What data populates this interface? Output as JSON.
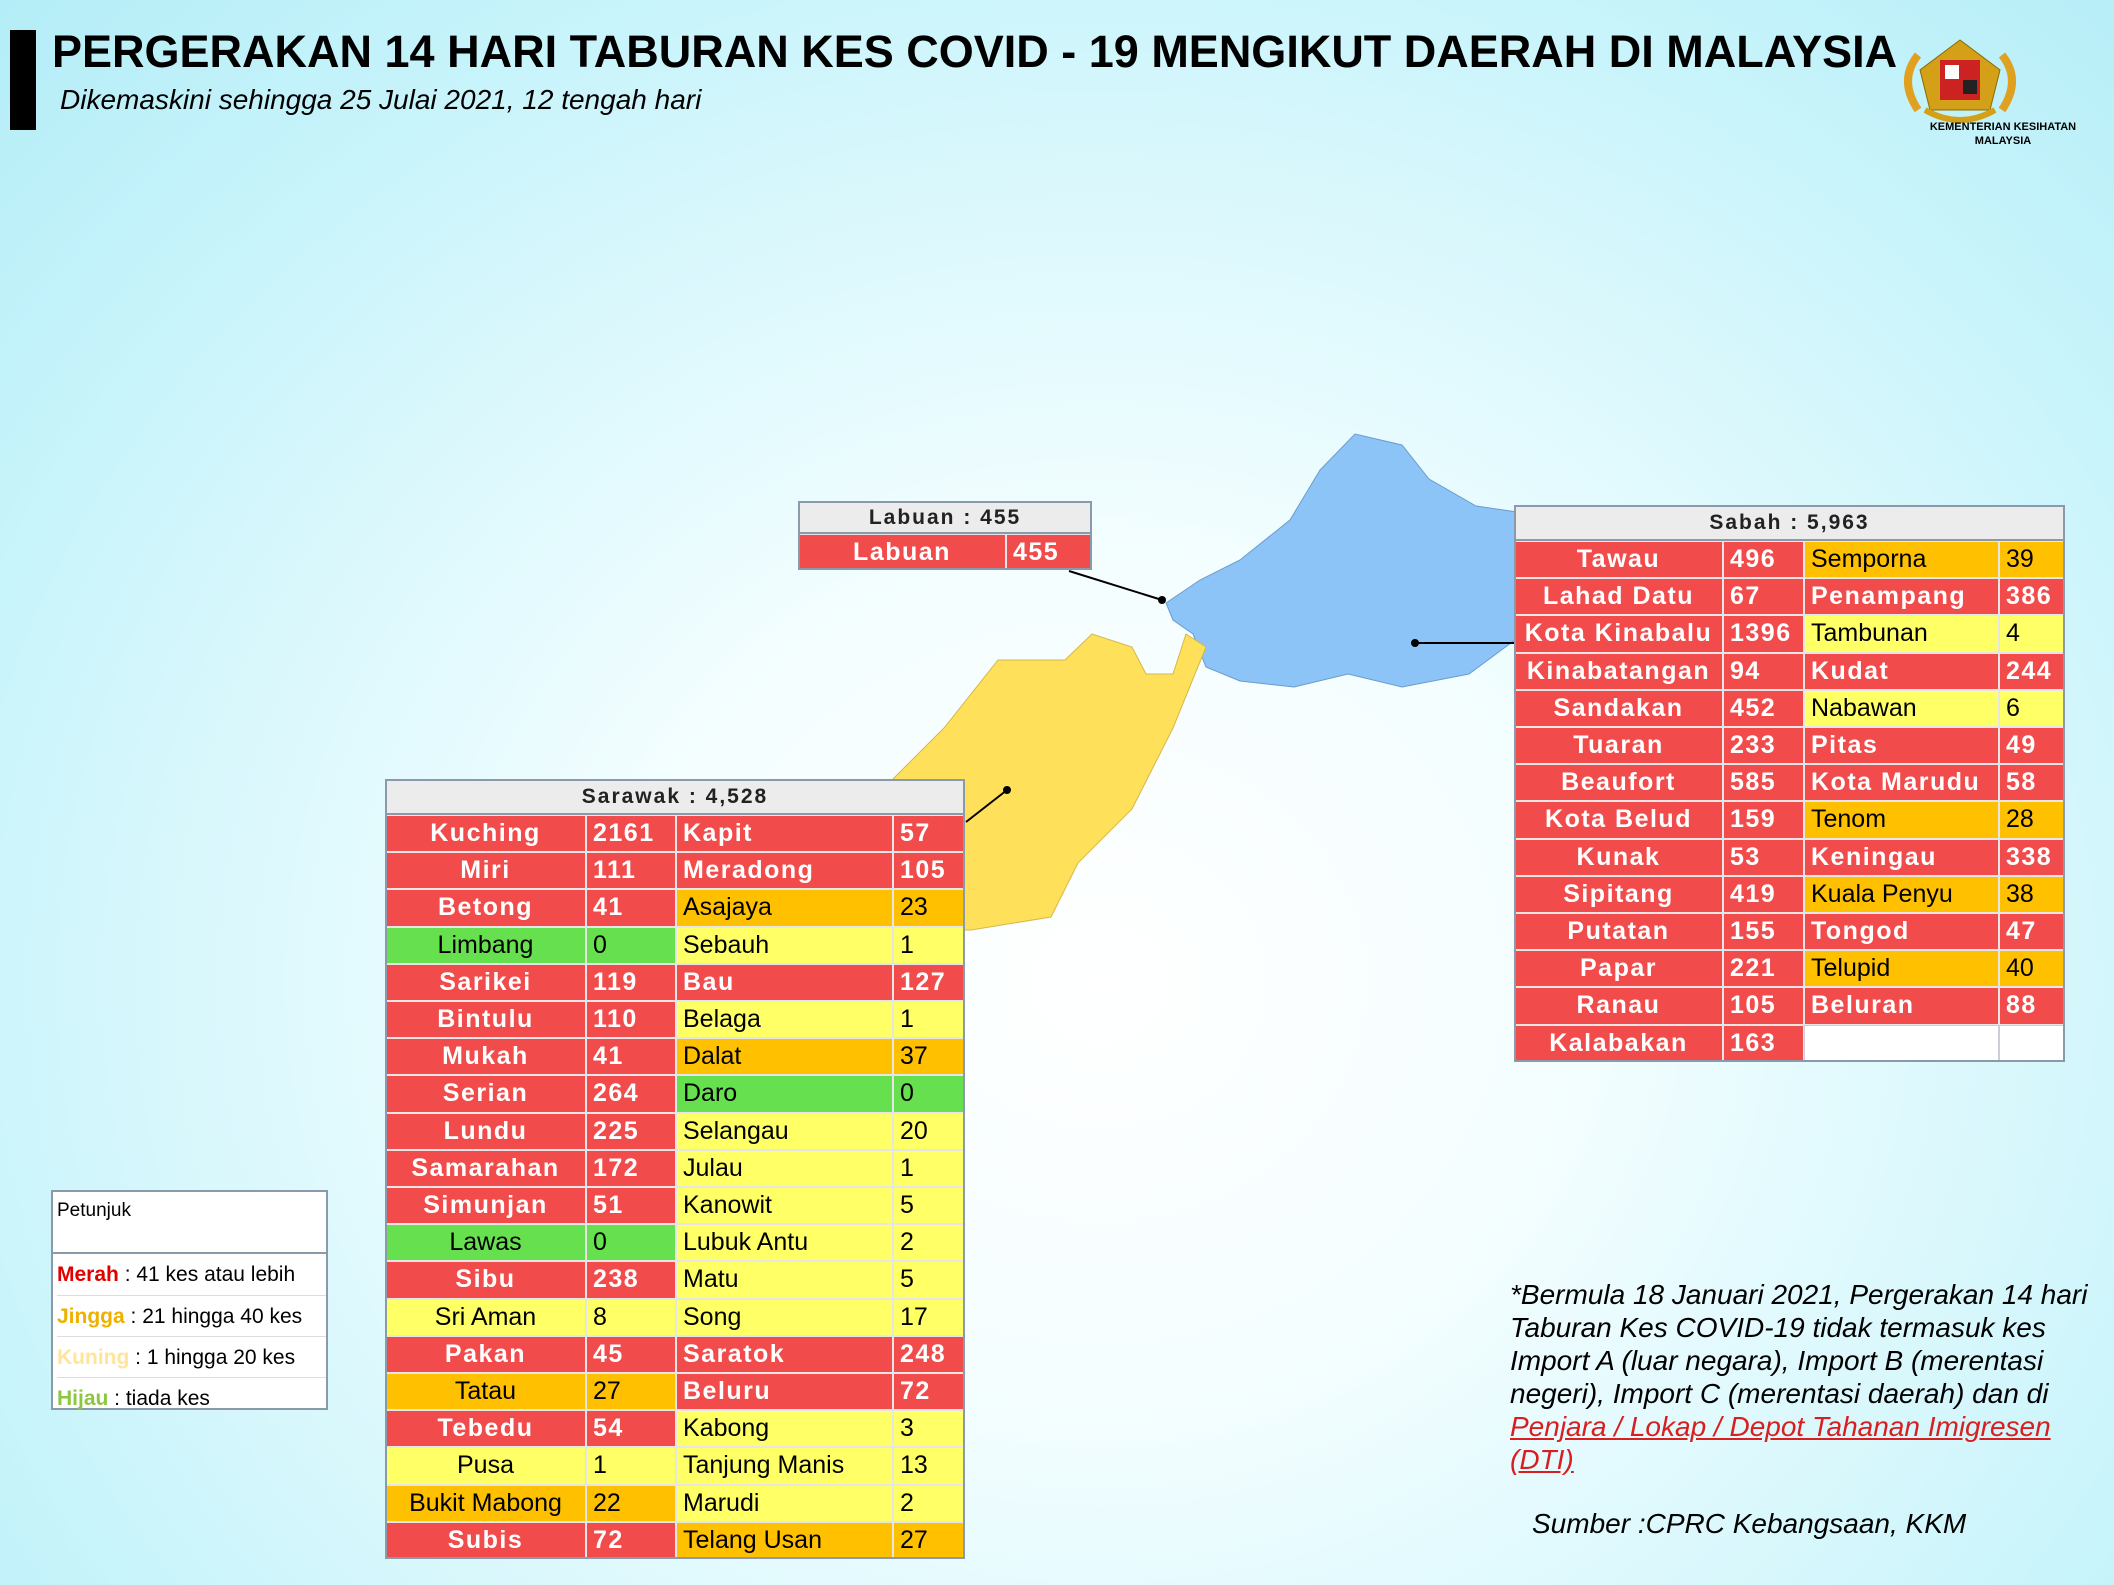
{
  "header": {
    "title": "PERGERAKAN 14 HARI TABURAN KES COVID - 19 MENGIKUT DAERAH DI MALAYSIA",
    "subtitle": "Dikemaskini sehingga 25 Julai 2021, 12 tengah hari"
  },
  "logo": {
    "line1": "KEMENTERIAN KESIHATAN",
    "line2": "MALAYSIA"
  },
  "tables": {
    "labuan": {
      "title": "Labuan : 455",
      "left": [
        {
          "name": "Labuan",
          "value": 455,
          "color": "#f24b4b"
        }
      ]
    },
    "sabah": {
      "title": "Sabah : 5,963",
      "left": [
        {
          "name": "Tawau",
          "value": 496,
          "color": "#f24b4b"
        },
        {
          "name": "Lahad Datu",
          "value": 67,
          "color": "#f24b4b"
        },
        {
          "name": "Kota Kinabalu",
          "value": 1396,
          "color": "#f24b4b"
        },
        {
          "name": "Kinabatangan",
          "value": 94,
          "color": "#f24b4b"
        },
        {
          "name": "Sandakan",
          "value": 452,
          "color": "#f24b4b"
        },
        {
          "name": "Tuaran",
          "value": 233,
          "color": "#f24b4b"
        },
        {
          "name": "Beaufort",
          "value": 585,
          "color": "#f24b4b"
        },
        {
          "name": "Kota Belud",
          "value": 159,
          "color": "#f24b4b"
        },
        {
          "name": "Kunak",
          "value": 53,
          "color": "#f24b4b"
        },
        {
          "name": "Sipitang",
          "value": 419,
          "color": "#f24b4b"
        },
        {
          "name": "Putatan",
          "value": 155,
          "color": "#f24b4b"
        },
        {
          "name": "Papar",
          "value": 221,
          "color": "#f24b4b"
        },
        {
          "name": "Ranau",
          "value": 105,
          "color": "#f24b4b"
        },
        {
          "name": "Kalabakan",
          "value": 163,
          "color": "#f24b4b"
        }
      ],
      "right": [
        {
          "name": "Semporna",
          "value": 39,
          "color": "#ffc000"
        },
        {
          "name": "Penampang",
          "value": 386,
          "color": "#f24b4b"
        },
        {
          "name": "Tambunan",
          "value": 4,
          "color": "#ffff66"
        },
        {
          "name": "Kudat",
          "value": 244,
          "color": "#f24b4b"
        },
        {
          "name": "Nabawan",
          "value": 6,
          "color": "#ffff66"
        },
        {
          "name": "Pitas",
          "value": 49,
          "color": "#f24b4b"
        },
        {
          "name": "Kota Marudu",
          "value": 58,
          "color": "#f24b4b"
        },
        {
          "name": "Tenom",
          "value": 28,
          "color": "#ffc000"
        },
        {
          "name": "Keningau",
          "value": 338,
          "color": "#f24b4b"
        },
        {
          "name": "Kuala Penyu",
          "value": 38,
          "color": "#ffc000"
        },
        {
          "name": "Tongod",
          "value": 47,
          "color": "#f24b4b"
        },
        {
          "name": "Telupid",
          "value": 40,
          "color": "#ffc000"
        },
        {
          "name": "Beluran",
          "value": 88,
          "color": "#f24b4b"
        }
      ]
    },
    "sarawak": {
      "title": "Sarawak : 4,528",
      "left": [
        {
          "name": "Kuching",
          "value": 2161,
          "color": "#f24b4b"
        },
        {
          "name": "Miri",
          "value": 111,
          "color": "#f24b4b"
        },
        {
          "name": "Betong",
          "value": 41,
          "color": "#f24b4b"
        },
        {
          "name": "Limbang",
          "value": 0,
          "color": "#66e04f"
        },
        {
          "name": "Sarikei",
          "value": 119,
          "color": "#f24b4b"
        },
        {
          "name": "Bintulu",
          "value": 110,
          "color": "#f24b4b"
        },
        {
          "name": "Mukah",
          "value": 41,
          "color": "#f24b4b"
        },
        {
          "name": "Serian",
          "value": 264,
          "color": "#f24b4b"
        },
        {
          "name": "Lundu",
          "value": 225,
          "color": "#f24b4b"
        },
        {
          "name": "Samarahan",
          "value": 172,
          "color": "#f24b4b"
        },
        {
          "name": "Simunjan",
          "value": 51,
          "color": "#f24b4b"
        },
        {
          "name": "Lawas",
          "value": 0,
          "color": "#66e04f"
        },
        {
          "name": "Sibu",
          "value": 238,
          "color": "#f24b4b"
        },
        {
          "name": "Sri Aman",
          "value": 8,
          "color": "#ffff66"
        },
        {
          "name": "Pakan",
          "value": 45,
          "color": "#f24b4b"
        },
        {
          "name": "Tatau",
          "value": 27,
          "color": "#ffc000"
        },
        {
          "name": "Tebedu",
          "value": 54,
          "color": "#f24b4b"
        },
        {
          "name": "Pusa",
          "value": 1,
          "color": "#ffff66"
        },
        {
          "name": "Bukit Mabong",
          "value": 22,
          "color": "#ffc000"
        },
        {
          "name": "Subis",
          "value": 72,
          "color": "#f24b4b"
        }
      ],
      "right": [
        {
          "name": "Kapit",
          "value": 57,
          "color": "#f24b4b"
        },
        {
          "name": "Meradong",
          "value": 105,
          "color": "#f24b4b"
        },
        {
          "name": "Asajaya",
          "value": 23,
          "color": "#ffc000"
        },
        {
          "name": "Sebauh",
          "value": 1,
          "color": "#ffff66"
        },
        {
          "name": "Bau",
          "value": 127,
          "color": "#f24b4b"
        },
        {
          "name": "Belaga",
          "value": 1,
          "color": "#ffff66"
        },
        {
          "name": "Dalat",
          "value": 37,
          "color": "#ffc000"
        },
        {
          "name": "Daro",
          "value": 0,
          "color": "#66e04f"
        },
        {
          "name": "Selangau",
          "value": 20,
          "color": "#ffff66"
        },
        {
          "name": "Julau",
          "value": 1,
          "color": "#ffff66"
        },
        {
          "name": "Kanowit",
          "value": 5,
          "color": "#ffff66"
        },
        {
          "name": "Lubuk Antu",
          "value": 2,
          "color": "#ffff66"
        },
        {
          "name": "Matu",
          "value": 5,
          "color": "#ffff66"
        },
        {
          "name": "Song",
          "value": 17,
          "color": "#ffff66"
        },
        {
          "name": "Saratok",
          "value": 248,
          "color": "#f24b4b"
        },
        {
          "name": "Beluru",
          "value": 72,
          "color": "#f24b4b"
        },
        {
          "name": "Kabong",
          "value": 3,
          "color": "#ffff66"
        },
        {
          "name": "Tanjung Manis",
          "value": 13,
          "color": "#ffff66"
        },
        {
          "name": "Marudi",
          "value": 2,
          "color": "#ffff66"
        },
        {
          "name": "Telang Usan",
          "value": 27,
          "color": "#ffc000"
        }
      ]
    }
  },
  "legend": {
    "title": "Petunjuk",
    "items": [
      {
        "label": "Merah",
        "text": ": 41 kes atau lebih",
        "color": "#f24b4b",
        "label_color": "#e00000"
      },
      {
        "label": "Jingga",
        "text": ": 21 hingga 40 kes",
        "color": "#ffc000",
        "label_color": "#f0b000"
      },
      {
        "label": "Kuning",
        "text": ": 1 hingga 20 kes",
        "color": "#ffff66",
        "label_color": "#ffe599"
      },
      {
        "label": "Hijau",
        "text": ": tiada kes",
        "color": "#66e04f",
        "label_color": "#8dc63f"
      }
    ]
  },
  "note": {
    "lines": [
      "*Bermula 18 Januari 2021, Pergerakan 14 hari",
      "Taburan Kes COVID-19 tidak termasuk kes",
      "Import A (luar negara), Import B (merentasi",
      "negeri), Import C (merentasi daerah) dan di"
    ],
    "link_lines": [
      "Penjara / Lokap / Depot Tahanan Imigresen",
      "(DTI)"
    ]
  },
  "source": "Sumber :CPRC Kebangsaan,  KKM"
}
